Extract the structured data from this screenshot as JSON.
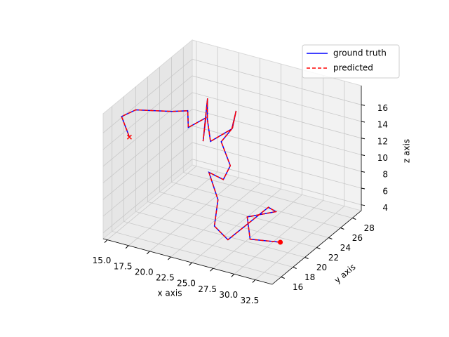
{
  "chart_data": {
    "type": "line3d",
    "xlabel": "x axis",
    "ylabel": "y axis",
    "zlabel": "z axis",
    "xlim": [
      14.5,
      34.5
    ],
    "ylim": [
      14.5,
      29.5
    ],
    "zlim": [
      3.3,
      18.3
    ],
    "xticks": [
      {
        "value": 15,
        "label": "15.0"
      },
      17.5,
      {
        "value": 20,
        "label": "20.0"
      },
      22.5,
      {
        "value": 25,
        "label": "25.0"
      },
      27.5,
      {
        "value": 30,
        "label": "30.0"
      },
      32.5
    ],
    "yticks": [
      16,
      18,
      20,
      22,
      24,
      26,
      28
    ],
    "zticks": [
      4,
      6,
      8,
      10,
      12,
      14,
      16
    ],
    "grid": true,
    "legend": "upper right",
    "series": [
      {
        "name": "ground truth",
        "color": "#0000ff",
        "linestyle": "solid",
        "x": [
          32.3,
          28.2,
          26.8,
          28.6,
          27.2,
          26.1,
          24.5,
          24.4,
          22.8,
          24.5,
          24.8,
          23.2,
          24.0,
          23.9,
          23.4,
          21.4,
          20.5,
          20.0,
          20.0,
          19.8,
          17.2,
          16.6,
          15.3,
          15.2,
          15.1,
          15.5
        ],
        "y": [
          19.0,
          19.75,
          21.25,
          23.5,
          24.25,
          19.0,
          19.0,
          19.75,
          20.5,
          20.5,
          21.25,
          22.0,
          22.75,
          23.5,
          23.5,
          22.75,
          23.5,
          24.25,
          23.5,
          24.25,
          25.0,
          25.75,
          25.0,
          19.0,
          16.75,
          17.5
        ],
        "z": [
          5.1,
          3.9,
          5.3,
          5.1,
          4.8,
          3.7,
          4.9,
          7.6,
          10.0,
          9.6,
          10.9,
          12.9,
          14.3,
          15.9,
          13.6,
          12.0,
          14.0,
          15.9,
          11.2,
          13.5,
          11.2,
          12.6,
          12.6,
          16.3,
          16.8,
          14.0
        ]
      },
      {
        "name": "predicted",
        "color": "#ff0000",
        "linestyle": "dashed",
        "start_marker": "o",
        "end_marker": "x",
        "x": [
          32.3,
          28.2,
          26.8,
          28.6,
          27.2,
          26.1,
          24.5,
          24.4,
          22.8,
          24.5,
          24.8,
          23.2,
          24.0,
          23.9,
          23.4,
          21.4,
          20.5,
          20.0,
          20.0,
          19.8,
          17.2,
          16.6,
          15.3,
          15.2,
          15.1,
          15.5
        ],
        "y": [
          19.0,
          19.75,
          21.25,
          23.5,
          24.25,
          19.0,
          19.0,
          19.75,
          20.5,
          20.5,
          21.25,
          22.0,
          22.75,
          23.5,
          23.5,
          22.75,
          23.5,
          24.25,
          23.5,
          24.25,
          25.0,
          25.75,
          25.0,
          19.0,
          16.75,
          17.5
        ],
        "z": [
          5.1,
          3.9,
          5.3,
          5.1,
          4.8,
          3.7,
          4.9,
          7.6,
          10.0,
          9.6,
          10.9,
          12.9,
          14.3,
          15.9,
          13.6,
          12.0,
          14.0,
          15.9,
          11.2,
          13.5,
          11.2,
          12.6,
          12.6,
          16.3,
          16.8,
          14.0
        ]
      }
    ]
  }
}
